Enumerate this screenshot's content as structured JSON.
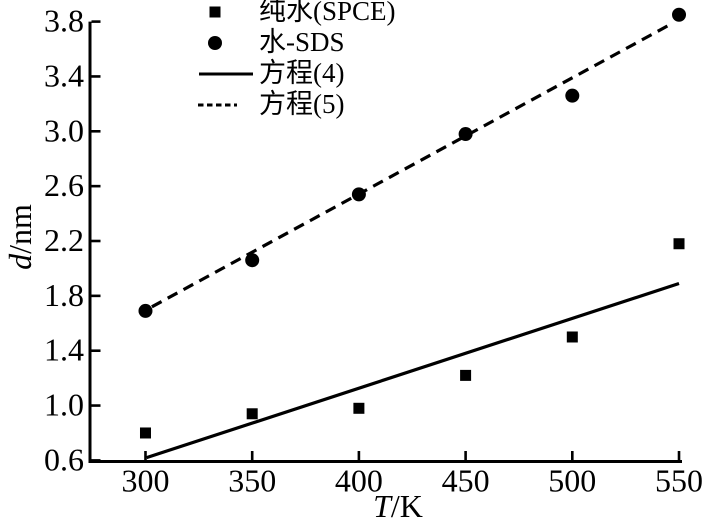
{
  "figure": {
    "background_color": "#ffffff",
    "ink_color": "#000000"
  },
  "chart_data": {
    "type": "scatter",
    "title": "",
    "xlabel": "T/K",
    "xlabel_italic_part": "T",
    "xlabel_normal_part": "/K",
    "ylabel": "d/nm",
    "ylabel_italic_part": "d",
    "ylabel_normal_part": "/nm",
    "xlim": [
      274,
      551.4
    ],
    "ylim": [
      0.592,
      3.87
    ],
    "xticks": {
      "values": [
        300,
        350,
        400,
        450,
        500,
        550
      ],
      "labels": [
        "300",
        "350",
        "400",
        "450",
        "500",
        "550"
      ]
    },
    "yticks": {
      "values": [
        0.6,
        1.0,
        1.4,
        1.8,
        2.2,
        2.6,
        3.0,
        3.4,
        3.8
      ],
      "labels": [
        "0.6",
        "1.0",
        "1.4",
        "1.8",
        "2.2",
        "2.6",
        "3.0",
        "3.4",
        "3.8"
      ]
    },
    "grid": false,
    "legend_position": "inside-top-left",
    "series": [
      {
        "name": "纯水(SPCE)",
        "type": "scatter",
        "marker": "square",
        "color": "#000000",
        "points": [
          [
            300,
            0.8
          ],
          [
            350,
            0.94
          ],
          [
            400,
            0.98
          ],
          [
            450,
            1.22
          ],
          [
            500,
            1.5
          ],
          [
            550,
            2.18
          ]
        ]
      },
      {
        "name": "水-SDS",
        "type": "scatter",
        "marker": "circle",
        "color": "#000000",
        "points": [
          [
            300,
            1.69
          ],
          [
            350,
            2.06
          ],
          [
            400,
            2.54
          ],
          [
            450,
            2.98
          ],
          [
            500,
            3.26
          ],
          [
            550,
            3.85
          ]
        ]
      },
      {
        "name": "方程(4)",
        "type": "line",
        "line_style": "solid",
        "color": "#000000",
        "points": [
          [
            300.5,
            0.62
          ],
          [
            550,
            1.89
          ]
        ]
      },
      {
        "name": "方程(5)",
        "type": "line",
        "line_style": "dashed",
        "color": "#000000",
        "points": [
          [
            303,
            1.72
          ],
          [
            546,
            3.78
          ]
        ]
      }
    ]
  }
}
